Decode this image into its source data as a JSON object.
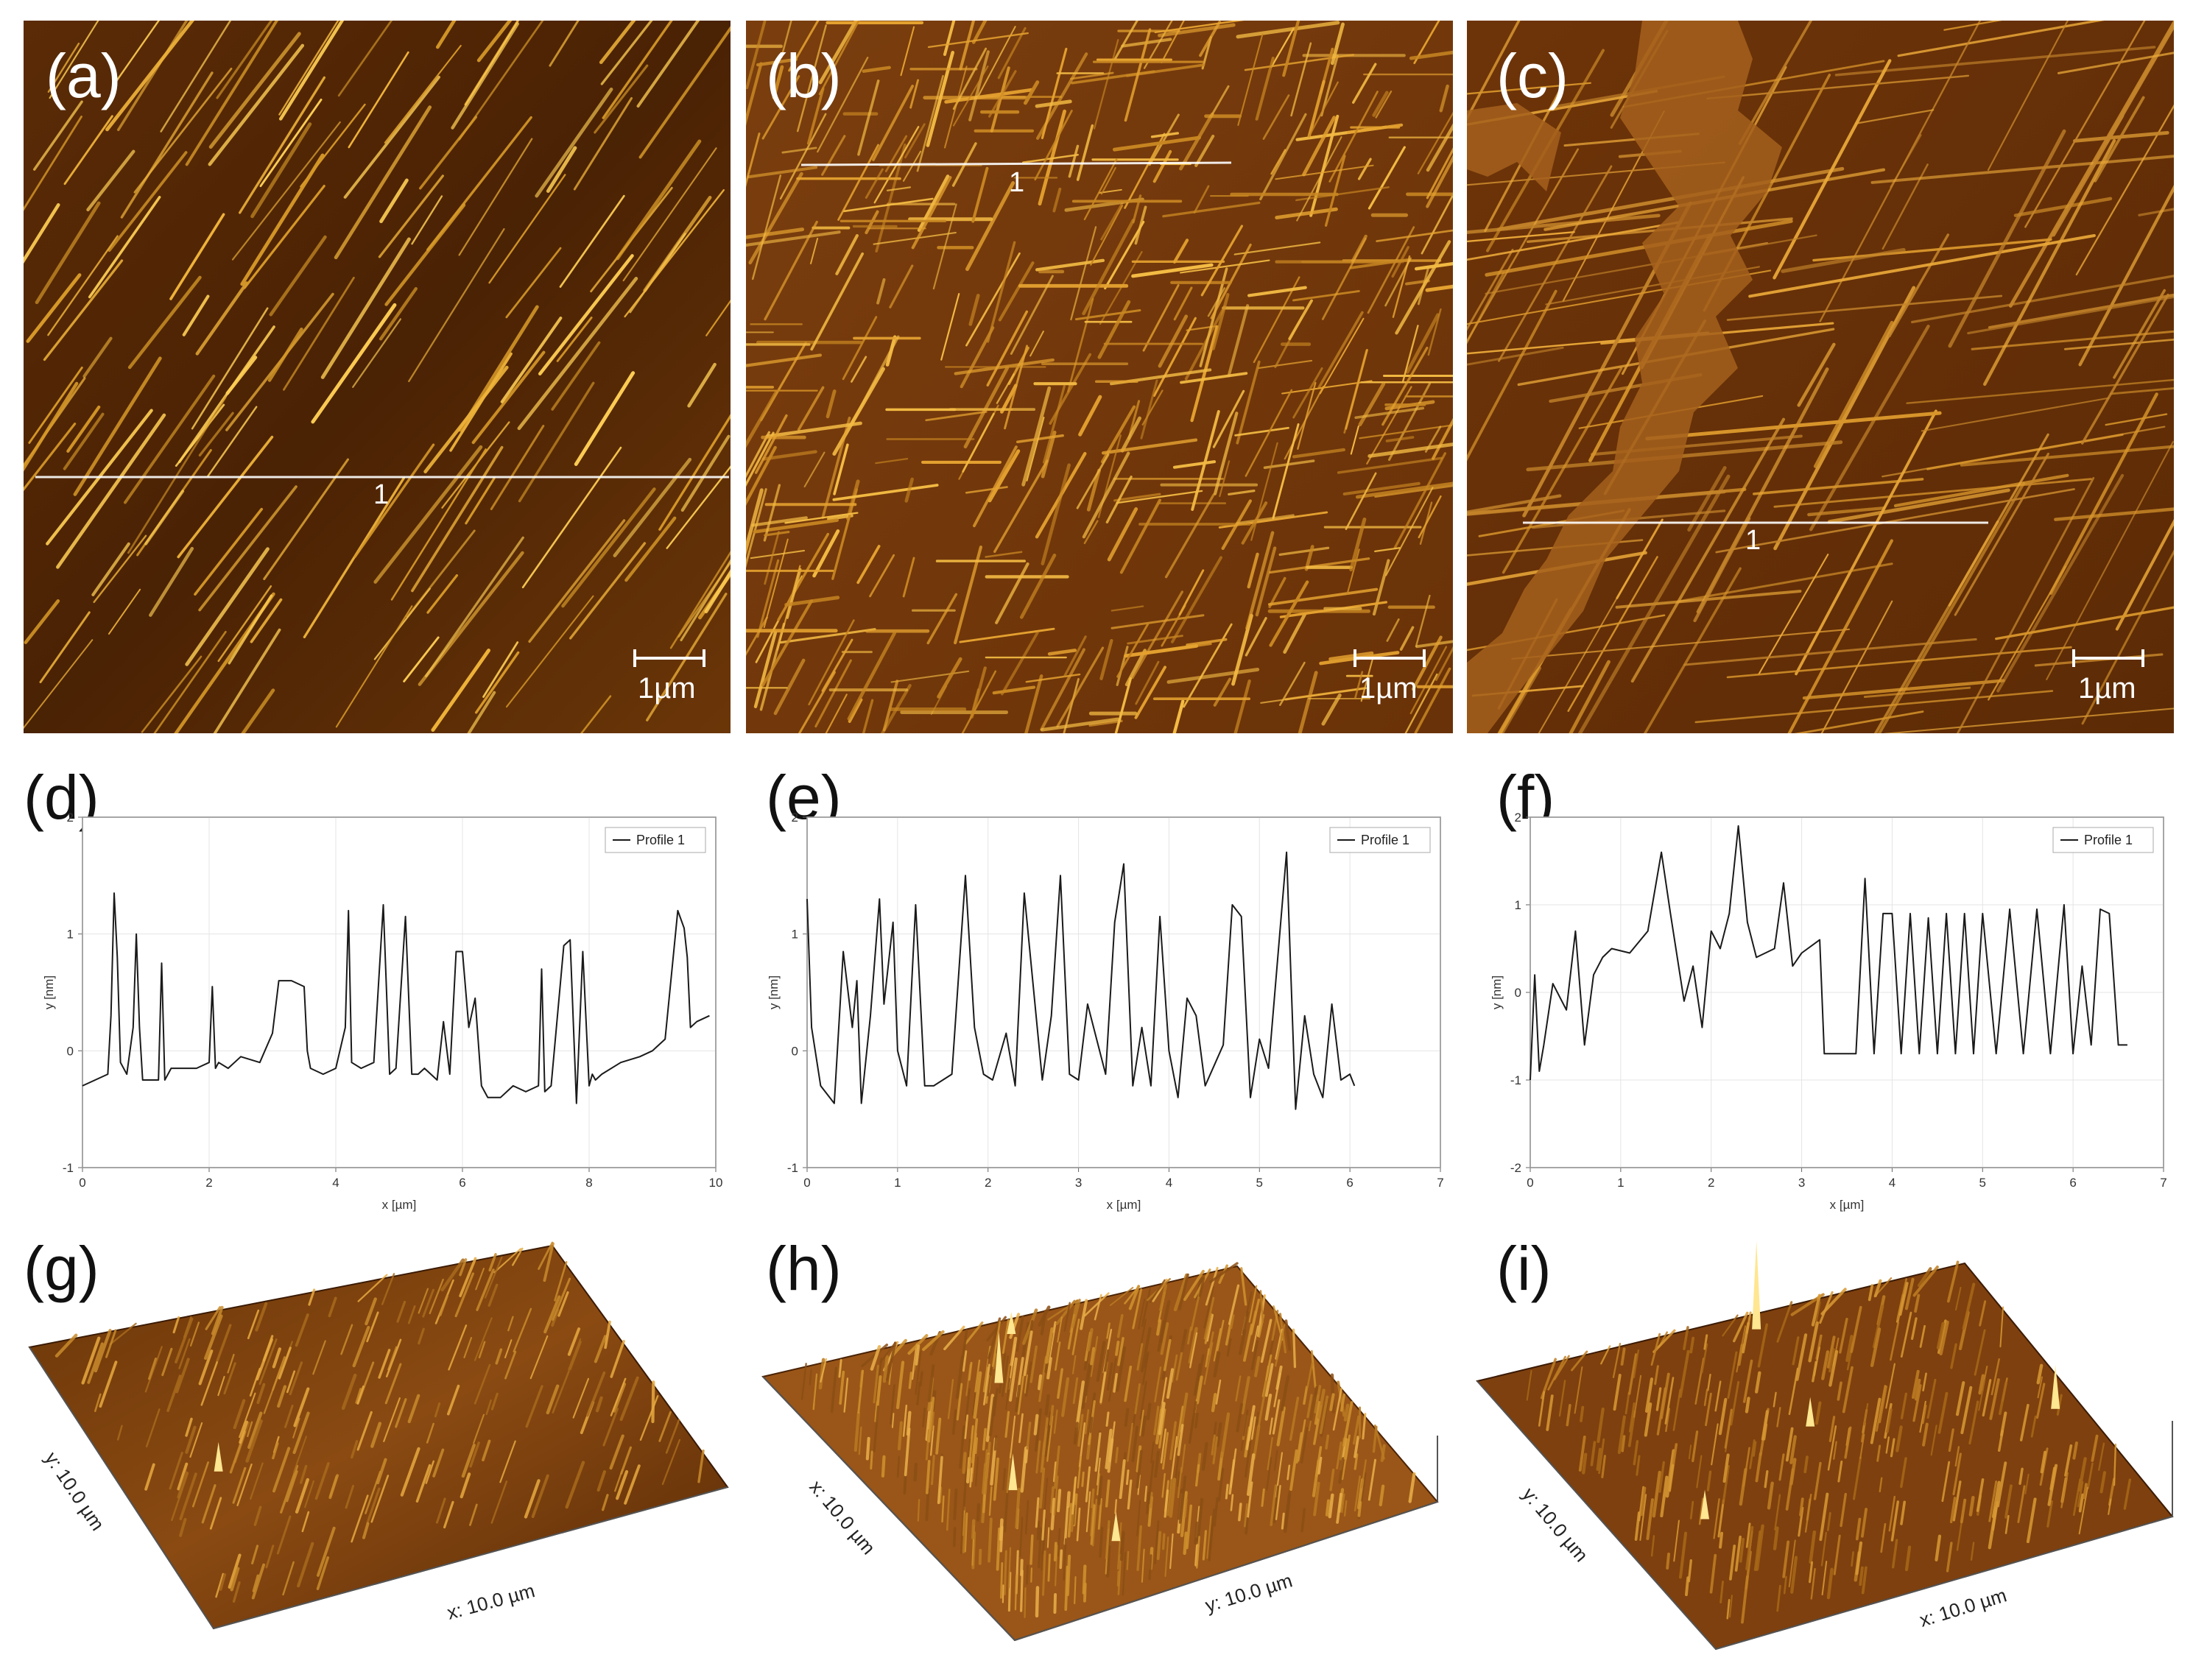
{
  "afm_images": [
    {
      "label": "(a)",
      "scale_bar": "1µm",
      "profile_line_label": "1",
      "style": "sparse-parallel"
    },
    {
      "label": "(b)",
      "scale_bar": "1µm",
      "profile_line_label": "1",
      "style": "dense-crossed"
    },
    {
      "label": "(c)",
      "scale_bar": "1µm",
      "profile_line_label": "1",
      "style": "domain-with-terrace"
    }
  ],
  "chart_data": [
    {
      "type": "line",
      "label": "(d)",
      "xlabel": "x [µm]",
      "ylabel": "y [nm]",
      "xlim": [
        0,
        10
      ],
      "ylim": [
        -1,
        2
      ],
      "xticks": [
        0,
        2,
        4,
        6,
        8,
        10
      ],
      "yticks": [
        -1,
        0,
        1,
        2
      ],
      "grid": true,
      "legend": {
        "placement": "top-right",
        "entry": "Profile 1"
      },
      "series": [
        {
          "name": "Profile 1",
          "x": [
            0,
            0.2,
            0.4,
            0.45,
            0.5,
            0.55,
            0.6,
            0.7,
            0.8,
            0.85,
            0.9,
            0.95,
            1.0,
            1.2,
            1.25,
            1.3,
            1.35,
            1.4,
            1.8,
            2.0,
            2.05,
            2.1,
            2.15,
            2.3,
            2.5,
            2.8,
            3.0,
            3.1,
            3.3,
            3.5,
            3.55,
            3.6,
            3.8,
            4.0,
            4.15,
            4.2,
            4.25,
            4.4,
            4.6,
            4.75,
            4.85,
            4.95,
            5.1,
            5.2,
            5.3,
            5.4,
            5.6,
            5.7,
            5.8,
            5.9,
            6.0,
            6.1,
            6.2,
            6.3,
            6.35,
            6.4,
            6.6,
            6.8,
            7.0,
            7.2,
            7.25,
            7.3,
            7.4,
            7.6,
            7.7,
            7.8,
            7.9,
            8.0,
            8.05,
            8.1,
            8.2,
            8.5,
            8.8,
            9.0,
            9.2,
            9.4,
            9.5,
            9.55,
            9.6,
            9.7,
            9.9
          ],
          "y": [
            -0.3,
            -0.25,
            -0.2,
            0.3,
            1.35,
            0.8,
            -0.1,
            -0.2,
            0.2,
            1.0,
            0.2,
            -0.25,
            -0.25,
            -0.25,
            0.75,
            -0.25,
            -0.2,
            -0.15,
            -0.15,
            -0.1,
            0.55,
            -0.15,
            -0.1,
            -0.15,
            -0.05,
            -0.1,
            0.15,
            0.6,
            0.6,
            0.55,
            0.0,
            -0.15,
            -0.2,
            -0.15,
            0.2,
            1.2,
            -0.1,
            -0.15,
            -0.1,
            1.25,
            -0.2,
            -0.15,
            1.15,
            -0.2,
            -0.2,
            -0.15,
            -0.25,
            0.25,
            -0.2,
            0.85,
            0.85,
            0.2,
            0.45,
            -0.3,
            -0.35,
            -0.4,
            -0.4,
            -0.3,
            -0.35,
            -0.3,
            0.7,
            -0.35,
            -0.3,
            0.9,
            0.95,
            -0.45,
            0.85,
            -0.3,
            -0.2,
            -0.25,
            -0.2,
            -0.1,
            -0.05,
            0.0,
            0.1,
            1.2,
            1.05,
            0.8,
            0.2,
            0.25,
            0.3
          ]
        }
      ]
    },
    {
      "type": "line",
      "label": "(e)",
      "xlabel": "x [µm]",
      "ylabel": "y [nm]",
      "xlim": [
        0,
        7
      ],
      "ylim": [
        -1,
        2
      ],
      "xticks": [
        0,
        1,
        2,
        3,
        4,
        5,
        6,
        7
      ],
      "yticks": [
        -1,
        0,
        1,
        2
      ],
      "grid": true,
      "legend": {
        "placement": "top-right",
        "entry": "Profile 1"
      },
      "series": [
        {
          "name": "Profile 1",
          "x": [
            0,
            0.05,
            0.15,
            0.3,
            0.4,
            0.5,
            0.55,
            0.6,
            0.7,
            0.8,
            0.85,
            0.95,
            1.0,
            1.1,
            1.2,
            1.3,
            1.4,
            1.6,
            1.75,
            1.85,
            1.95,
            2.05,
            2.2,
            2.3,
            2.4,
            2.6,
            2.7,
            2.8,
            2.9,
            3.0,
            3.1,
            3.3,
            3.4,
            3.5,
            3.6,
            3.7,
            3.8,
            3.9,
            4.0,
            4.1,
            4.2,
            4.3,
            4.4,
            4.6,
            4.7,
            4.8,
            4.9,
            5.0,
            5.1,
            5.3,
            5.4,
            5.5,
            5.6,
            5.7,
            5.8,
            5.9,
            6.0,
            6.05
          ],
          "y": [
            1.3,
            0.2,
            -0.3,
            -0.45,
            0.85,
            0.2,
            0.6,
            -0.45,
            0.3,
            1.3,
            0.4,
            1.1,
            0.0,
            -0.3,
            1.25,
            -0.3,
            -0.3,
            -0.2,
            1.5,
            0.2,
            -0.2,
            -0.25,
            0.15,
            -0.3,
            1.35,
            -0.25,
            0.3,
            1.5,
            -0.2,
            -0.25,
            0.4,
            -0.2,
            1.1,
            1.6,
            -0.3,
            0.2,
            -0.3,
            1.15,
            0.0,
            -0.4,
            0.45,
            0.3,
            -0.3,
            0.05,
            1.25,
            1.15,
            -0.4,
            0.1,
            -0.15,
            1.7,
            -0.5,
            0.3,
            -0.2,
            -0.4,
            0.4,
            -0.25,
            -0.2,
            -0.3
          ]
        }
      ]
    },
    {
      "type": "line",
      "label": "(f)",
      "xlabel": "x [µm]",
      "ylabel": "y [nm]",
      "xlim": [
        0,
        7
      ],
      "ylim": [
        -2,
        2
      ],
      "xticks": [
        0,
        1,
        2,
        3,
        4,
        5,
        6,
        7
      ],
      "yticks": [
        -2,
        -1,
        0,
        1,
        2
      ],
      "grid": true,
      "legend": {
        "placement": "top-right",
        "entry": "Profile 1"
      },
      "series": [
        {
          "name": "Profile 1",
          "x": [
            0,
            0.05,
            0.1,
            0.15,
            0.25,
            0.4,
            0.5,
            0.6,
            0.7,
            0.8,
            0.9,
            1.1,
            1.3,
            1.45,
            1.55,
            1.7,
            1.8,
            1.9,
            2.0,
            2.1,
            2.2,
            2.3,
            2.4,
            2.5,
            2.7,
            2.8,
            2.9,
            3.0,
            3.2,
            3.25,
            3.4,
            3.6,
            3.7,
            3.8,
            3.9,
            4.0,
            4.1,
            4.2,
            4.3,
            4.4,
            4.5,
            4.6,
            4.7,
            4.8,
            4.9,
            5.0,
            5.15,
            5.3,
            5.45,
            5.6,
            5.75,
            5.9,
            6.0,
            6.1,
            6.2,
            6.3,
            6.4,
            6.5,
            6.6
          ],
          "y": [
            -1.0,
            0.2,
            -0.9,
            -0.6,
            0.1,
            -0.2,
            0.7,
            -0.6,
            0.2,
            0.4,
            0.5,
            0.45,
            0.7,
            1.6,
            0.9,
            -0.1,
            0.3,
            -0.4,
            0.7,
            0.5,
            0.9,
            1.9,
            0.8,
            0.4,
            0.5,
            1.25,
            0.3,
            0.45,
            0.6,
            -0.7,
            -0.7,
            -0.7,
            1.3,
            -0.7,
            0.9,
            0.9,
            -0.7,
            0.9,
            -0.7,
            0.85,
            -0.7,
            0.9,
            -0.7,
            0.9,
            -0.7,
            0.9,
            -0.7,
            0.95,
            -0.7,
            0.95,
            -0.7,
            1.0,
            -0.7,
            0.3,
            -0.6,
            0.95,
            0.9,
            -0.6,
            -0.6
          ]
        }
      ]
    }
  ],
  "surface_3d": [
    {
      "label": "(g)",
      "x_axis": "x: 10.0 µm",
      "y_axis": "y: 10.0 µm"
    },
    {
      "label": "(h)",
      "x_axis": "x: 10.0 µm",
      "y_axis": "y: 10.0 µm"
    },
    {
      "label": "(i)",
      "x_axis": "x: 10.0 µm",
      "y_axis": "y: 10.0 µm"
    }
  ],
  "colors": {
    "afm_dark": "#3a1c04",
    "afm_mid": "#7a3e0c",
    "afm_bright": "#f2b63a",
    "plot_line": "#1a1a1a",
    "grid": "#e4e4e4"
  }
}
